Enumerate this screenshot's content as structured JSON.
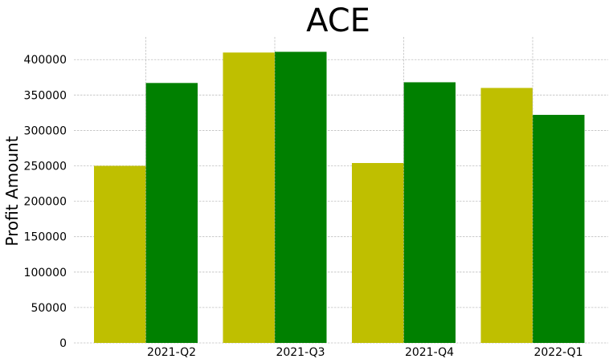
{
  "chart_data": {
    "type": "bar",
    "title": "ACE",
    "xlabel": "",
    "ylabel": "Profit Amount",
    "categories": [
      "2021-Q2",
      "2021-Q3",
      "2021-Q4",
      "2022-Q1"
    ],
    "series": [
      {
        "color": "#bfbf00",
        "values": [
          250000,
          410000,
          254000,
          360000
        ]
      },
      {
        "color": "#008000",
        "values": [
          367000,
          411000,
          368000,
          322000
        ]
      }
    ],
    "ylim": [
      0,
      432000
    ],
    "yticks": [
      0,
      50000,
      100000,
      150000,
      200000,
      250000,
      300000,
      350000,
      400000
    ],
    "grid": true,
    "legend": "none"
  }
}
